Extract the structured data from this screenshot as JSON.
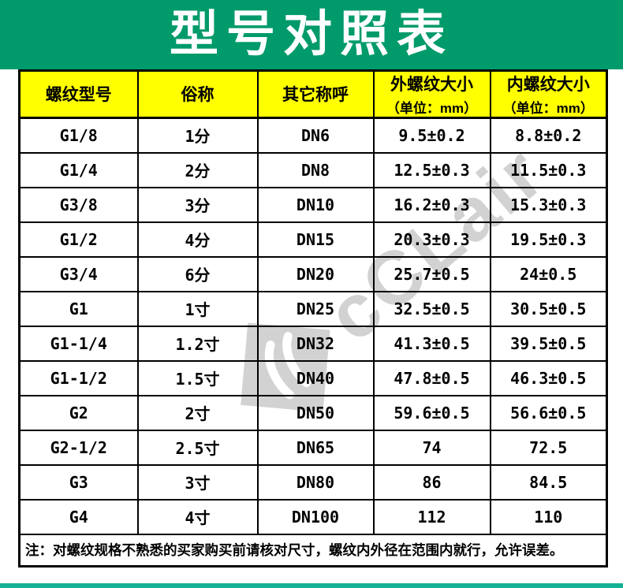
{
  "title": "型号对照表",
  "watermark": {
    "text": "cCLair"
  },
  "colors": {
    "banner_green": "#009a6b",
    "footer_green": "#14b294",
    "header_yellow": "#ffff00",
    "border_black": "#000000",
    "watermark_gray": "#d2d2d2"
  },
  "table": {
    "headers": [
      {
        "label": "螺纹型号",
        "sub": ""
      },
      {
        "label": "俗称",
        "sub": ""
      },
      {
        "label": "其它称呼",
        "sub": ""
      },
      {
        "label": "外螺纹大小",
        "sub": "（单位：mm）"
      },
      {
        "label": "内螺纹大小",
        "sub": "（单位：mm）"
      }
    ],
    "rows": [
      [
        "G1/8",
        "1分",
        "DN6",
        "9.5±0.2",
        "8.8±0.2"
      ],
      [
        "G1/4",
        "2分",
        "DN8",
        "12.5±0.3",
        "11.5±0.3"
      ],
      [
        "G3/8",
        "3分",
        "DN10",
        "16.2±0.3",
        "15.3±0.3"
      ],
      [
        "G1/2",
        "4分",
        "DN15",
        "20.3±0.3",
        "19.5±0.3"
      ],
      [
        "G3/4",
        "6分",
        "DN20",
        "25.7±0.5",
        "24±0.5"
      ],
      [
        "G1",
        "1寸",
        "DN25",
        "32.5±0.5",
        "30.5±0.5"
      ],
      [
        "G1-1/4",
        "1.2寸",
        "DN32",
        "41.3±0.5",
        "39.5±0.5"
      ],
      [
        "G1-1/2",
        "1.5寸",
        "DN40",
        "47.8±0.5",
        "46.3±0.5"
      ],
      [
        "G2",
        "2寸",
        "DN50",
        "59.6±0.5",
        "56.6±0.5"
      ],
      [
        "G2-1/2",
        "2.5寸",
        "DN65",
        "74",
        "72.5"
      ],
      [
        "G3",
        "3寸",
        "DN80",
        "86",
        "84.5"
      ],
      [
        "G4",
        "4寸",
        "DN100",
        "112",
        "110"
      ]
    ]
  },
  "note": "注：对螺纹规格不熟悉的买家购买前请核对尺寸，螺纹内外径在范围内就行，允许误差。"
}
